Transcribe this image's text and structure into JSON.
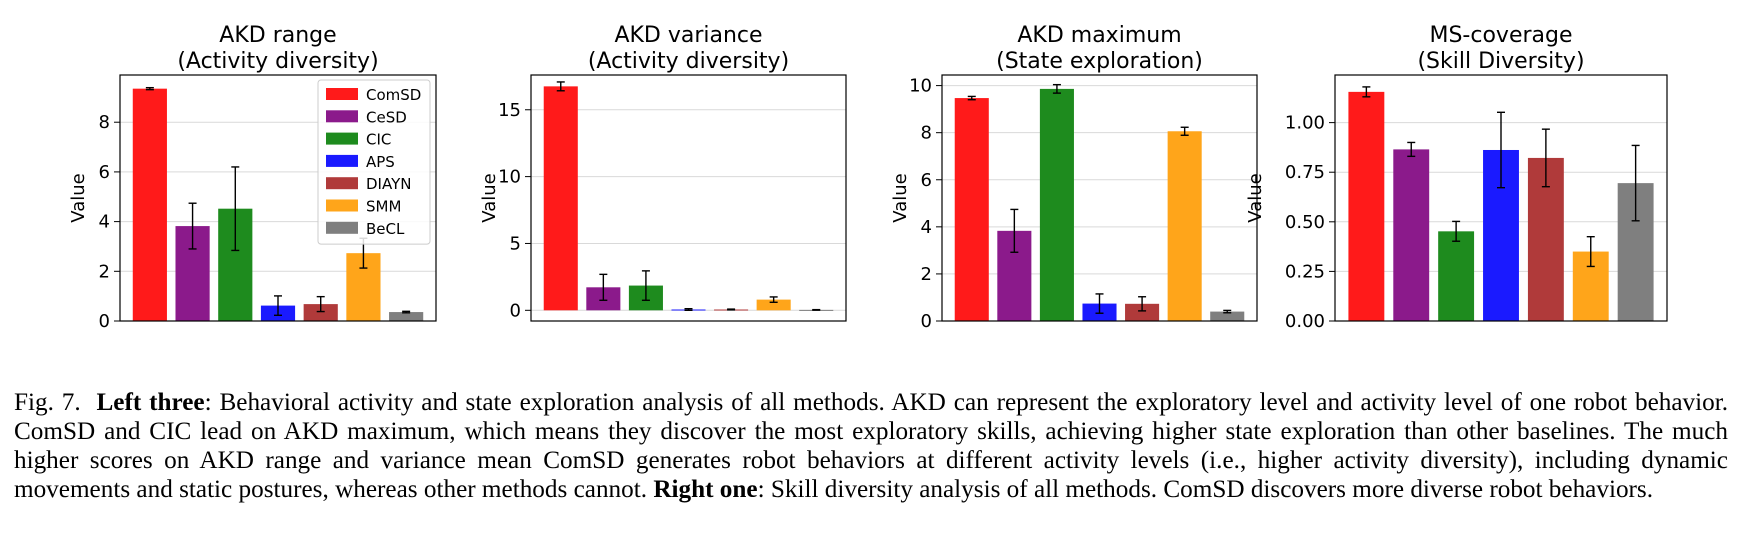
{
  "colors": {
    "ComSD": "#ff1a1a",
    "CeSD": "#8b1a8b",
    "CIC": "#1e8b1e",
    "APS": "#1a1aff",
    "DIAYN": "#b03a3a",
    "SMM": "#ffa51a",
    "BeCL": "#7f7f7f"
  },
  "chart_data": [
    {
      "type": "bar",
      "title": "AKD range\n(Activity diversity)",
      "ylabel": "Value",
      "categories": [
        "ComSD",
        "CeSD",
        "CIC",
        "APS",
        "DIAYN",
        "SMM",
        "BeCL"
      ],
      "values": [
        9.35,
        3.82,
        4.52,
        0.62,
        0.68,
        2.73,
        0.36
      ],
      "errors": [
        0.04,
        0.92,
        1.68,
        0.39,
        0.3,
        0.6,
        0.03
      ],
      "ylim": [
        0,
        9.9
      ],
      "yticks": [
        "0",
        "2",
        "4",
        "6",
        "8"
      ],
      "ytick_values": [
        0,
        2,
        4,
        6,
        8
      ],
      "grid": true,
      "legend": {
        "placement": "top-right",
        "entries": [
          "ComSD",
          "CeSD",
          "CIC",
          "APS",
          "DIAYN",
          "SMM",
          "BeCL"
        ]
      }
    },
    {
      "type": "bar",
      "title": "AKD variance\n(Activity diversity)",
      "ylabel": "Value",
      "categories": [
        "ComSD",
        "CeSD",
        "CIC",
        "APS",
        "DIAYN",
        "SMM",
        "BeCL"
      ],
      "values": [
        16.75,
        1.72,
        1.85,
        0.06,
        0.06,
        0.8,
        0.03
      ],
      "errors": [
        0.33,
        0.97,
        1.1,
        0.06,
        0.03,
        0.2,
        0.02
      ],
      "ylim": [
        -0.8,
        17.6
      ],
      "yticks": [
        "0",
        "5",
        "10",
        "15"
      ],
      "ytick_values": [
        0,
        5,
        10,
        15
      ],
      "grid": true
    },
    {
      "type": "bar",
      "title": "AKD maximum\n(State exploration)",
      "ylabel": "Value",
      "categories": [
        "ComSD",
        "CeSD",
        "CIC",
        "APS",
        "DIAYN",
        "SMM",
        "BeCL"
      ],
      "values": [
        9.47,
        3.83,
        9.86,
        0.74,
        0.73,
        8.06,
        0.4
      ],
      "errors": [
        0.07,
        0.91,
        0.18,
        0.41,
        0.3,
        0.17,
        0.05
      ],
      "ylim": [
        0,
        10.45
      ],
      "yticks": [
        "0",
        "2",
        "4",
        "6",
        "8",
        "10"
      ],
      "ytick_values": [
        0,
        2,
        4,
        6,
        8,
        10
      ],
      "grid": true
    },
    {
      "type": "bar",
      "title": "MS-coverage\n(Skill Diversity)",
      "ylabel": "Value",
      "categories": [
        "ComSD",
        "CeSD",
        "CIC",
        "APS",
        "DIAYN",
        "SMM",
        "BeCL"
      ],
      "values": [
        1.155,
        0.865,
        0.452,
        0.862,
        0.822,
        0.35,
        0.695
      ],
      "errors": [
        0.025,
        0.035,
        0.05,
        0.19,
        0.145,
        0.075,
        0.19
      ],
      "ylim": [
        0,
        1.24
      ],
      "yticks": [
        "0.00",
        "0.25",
        "0.50",
        "0.75",
        "1.00"
      ],
      "ytick_values": [
        0,
        0.25,
        0.5,
        0.75,
        1.0
      ],
      "grid": true
    }
  ],
  "caption": {
    "label": "Fig. 7.",
    "left_heading": "Left three",
    "left_text": ": Behavioral activity and state exploration analysis of all methods. AKD can represent the exploratory level and activity level of one robot behavior. ComSD and CIC lead on AKD maximum, which means they discover the most exploratory skills, achieving higher state exploration than other baselines. The much higher scores on AKD range and variance mean ComSD generates robot behaviors at different activity levels (i.e., higher activity diversity), including dynamic movements and static postures, whereas other methods cannot.",
    "right_heading": "Right one",
    "right_text": ": Skill diversity analysis of all methods. ComSD discovers more diverse robot behaviors."
  }
}
